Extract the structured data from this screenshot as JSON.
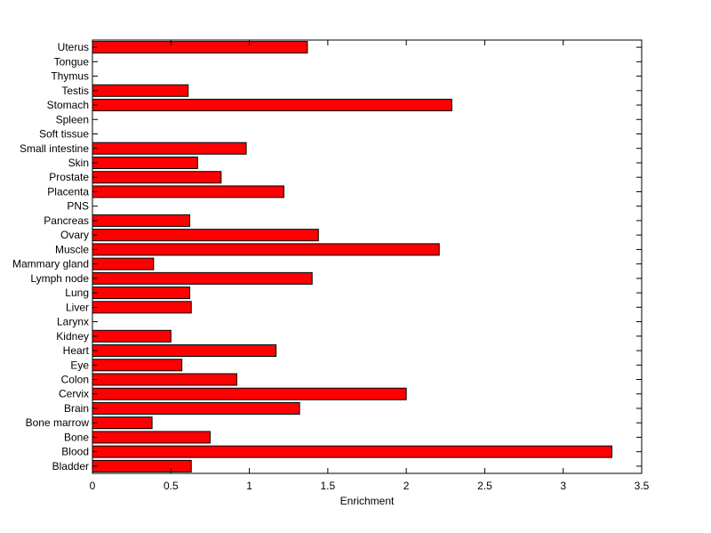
{
  "chart_data": {
    "type": "bar",
    "orientation": "horizontal",
    "title": "",
    "xlabel": "Enrichment",
    "ylabel": "",
    "xlim": [
      0,
      3.5
    ],
    "xticks": [
      "0",
      "0.5",
      "1",
      "1.5",
      "2",
      "2.5",
      "3",
      "3.5"
    ],
    "grid": false,
    "bar_color": "#ff0000",
    "categories": [
      "Bladder",
      "Blood",
      "Bone",
      "Bone marrow",
      "Brain",
      "Cervix",
      "Colon",
      "Eye",
      "Heart",
      "Kidney",
      "Larynx",
      "Liver",
      "Lung",
      "Lymph node",
      "Mammary gland",
      "Muscle",
      "Ovary",
      "Pancreas",
      "PNS",
      "Placenta",
      "Prostate",
      "Skin",
      "Small intestine",
      "Soft tissue",
      "Spleen",
      "Stomach",
      "Testis",
      "Thymus",
      "Tongue",
      "Uterus"
    ],
    "values": [
      0.63,
      3.31,
      0.75,
      0.38,
      1.32,
      2.0,
      0.92,
      0.57,
      1.17,
      0.5,
      0,
      0.63,
      0.62,
      1.4,
      0.39,
      2.21,
      1.44,
      0.62,
      0,
      1.22,
      0.82,
      0.67,
      0.98,
      0,
      0,
      2.29,
      0.61,
      0,
      0,
      1.37
    ]
  }
}
